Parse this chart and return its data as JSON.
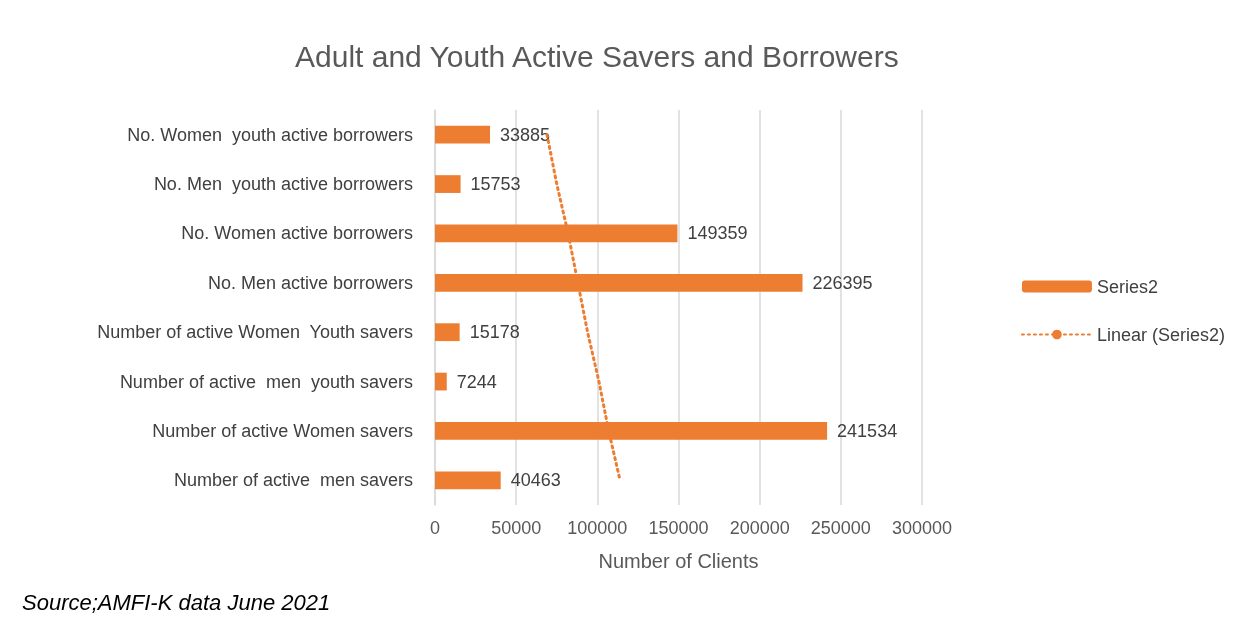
{
  "chart_data": {
    "type": "bar",
    "orientation": "horizontal",
    "title": "Adult and Youth Active Savers and Borrowers",
    "xlabel": "Number of Clients",
    "categories": [
      "No. Women  youth active borrowers",
      "No. Men  youth active borrowers",
      "No. Women active borrowers",
      "No. Men active borrowers",
      "Number of active Women  Youth savers",
      "Number of active  men  youth savers",
      "Number of active Women savers",
      "Number of active  men savers"
    ],
    "series": [
      {
        "name": "Series2",
        "color": "#ed7d31",
        "values": [
          33885,
          15753,
          149359,
          226395,
          15178,
          7244,
          241534,
          40463
        ],
        "value_labels": [
          "33885",
          "15753",
          "149359",
          "226395",
          "15178",
          "7244",
          "241534",
          "40463"
        ]
      },
      {
        "name": "Linear (Series2)",
        "type": "line",
        "color": "#ed7d31",
        "line_style": "dotted",
        "marker": "none",
        "values": [
          69000,
          75000,
          82000,
          88000,
          94000,
          101000,
          107000,
          114000
        ]
      }
    ],
    "xlim": [
      0,
      300000
    ],
    "xticks": [
      0,
      50000,
      100000,
      150000,
      200000,
      250000,
      300000
    ],
    "grid": "x",
    "legend": "right",
    "annotations": [
      "Source;AMFI-K data June 2021"
    ]
  }
}
